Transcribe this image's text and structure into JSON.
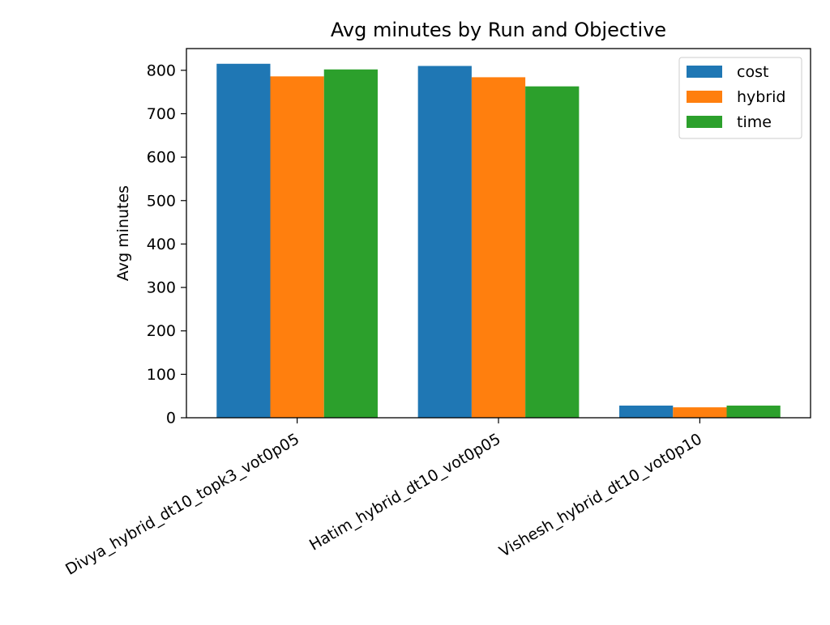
{
  "chart_data": {
    "type": "bar",
    "title": "Avg minutes by Run and Objective",
    "xlabel": "",
    "ylabel": "Avg minutes",
    "ylim": [
      0,
      850
    ],
    "yticks": [
      0,
      100,
      200,
      300,
      400,
      500,
      600,
      700,
      800
    ],
    "grid": false,
    "legend_position": "top-right",
    "categories": [
      "Divya_hybrid_dt10_topk3_vot0p05",
      "Hatim_hybrid_dt10_vot0p05",
      "Vishesh_hybrid_dt10_vot0p10"
    ],
    "series": [
      {
        "name": "cost",
        "color": "#1f77b4",
        "values": [
          815,
          810,
          28
        ]
      },
      {
        "name": "hybrid",
        "color": "#ff7f0e",
        "values": [
          786,
          784,
          24
        ]
      },
      {
        "name": "time",
        "color": "#2ca02c",
        "values": [
          802,
          763,
          28
        ]
      }
    ]
  }
}
